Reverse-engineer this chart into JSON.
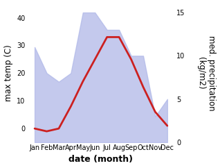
{
  "months": [
    1,
    2,
    3,
    4,
    5,
    6,
    7,
    8,
    9,
    10,
    11,
    12
  ],
  "month_labels": [
    "Jan",
    "Feb",
    "Mar",
    "Apr",
    "May",
    "Jun",
    "Jul",
    "Aug",
    "Sep",
    "Oct",
    "Nov",
    "Dec"
  ],
  "temp_max": [
    0,
    -1,
    0,
    8,
    17,
    25,
    33,
    33,
    25,
    15,
    6,
    1
  ],
  "precip": [
    11,
    8,
    7,
    8,
    15,
    15,
    13,
    13,
    10,
    10,
    3,
    5
  ],
  "temp_ylim": [
    -5,
    45
  ],
  "precip_ylim": [
    0,
    16
  ],
  "fill_color": "#b0b8e8",
  "fill_alpha": 0.75,
  "line_color": "#cc2020",
  "line_width": 2.0,
  "xlabel": "date (month)",
  "ylabel_left": "max temp (C)",
  "ylabel_right": "med. precipitation\n(kg/m2)",
  "background_color": "#ffffff",
  "tick_fontsize": 7,
  "label_fontsize": 8.5,
  "xlabel_fontsize": 9
}
